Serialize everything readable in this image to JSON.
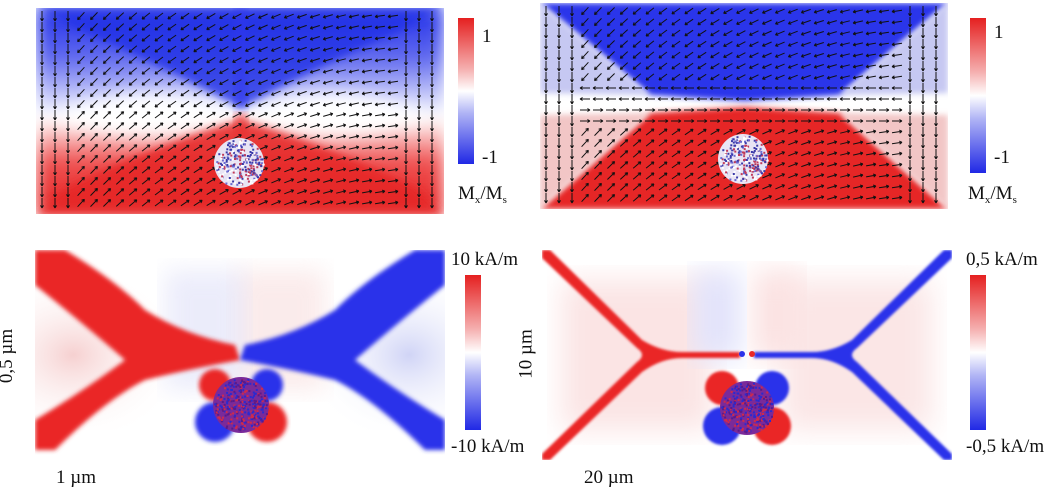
{
  "panels": [
    {
      "id": "mx-small",
      "type": "magnetization-arrows",
      "colorbar": {
        "max": "1",
        "min": "-1",
        "label_main": "M",
        "label_sub1": "x",
        "label_mid": "/M",
        "label_sub2": "s"
      }
    },
    {
      "id": "mx-large",
      "type": "magnetization-arrows",
      "colorbar": {
        "max": "1",
        "min": "-1",
        "label_main": "M",
        "label_sub1": "x",
        "label_mid": "/M",
        "label_sub2": "s"
      }
    },
    {
      "id": "field-small",
      "type": "stray-field",
      "colorbar": {
        "max": "10 kA/m",
        "min": "-10 kA/m"
      },
      "height_label": "0,5 µm",
      "width_label": "1 µm"
    },
    {
      "id": "field-large",
      "type": "stray-field",
      "colorbar": {
        "max": "0,5 kA/m",
        "min": "-0,5 kA/m"
      },
      "height_label": "10 µm",
      "width_label": "20 µm"
    }
  ],
  "colors": {
    "red": "#ee2a2a",
    "blue": "#2a34ee",
    "white": "#ffffff"
  }
}
